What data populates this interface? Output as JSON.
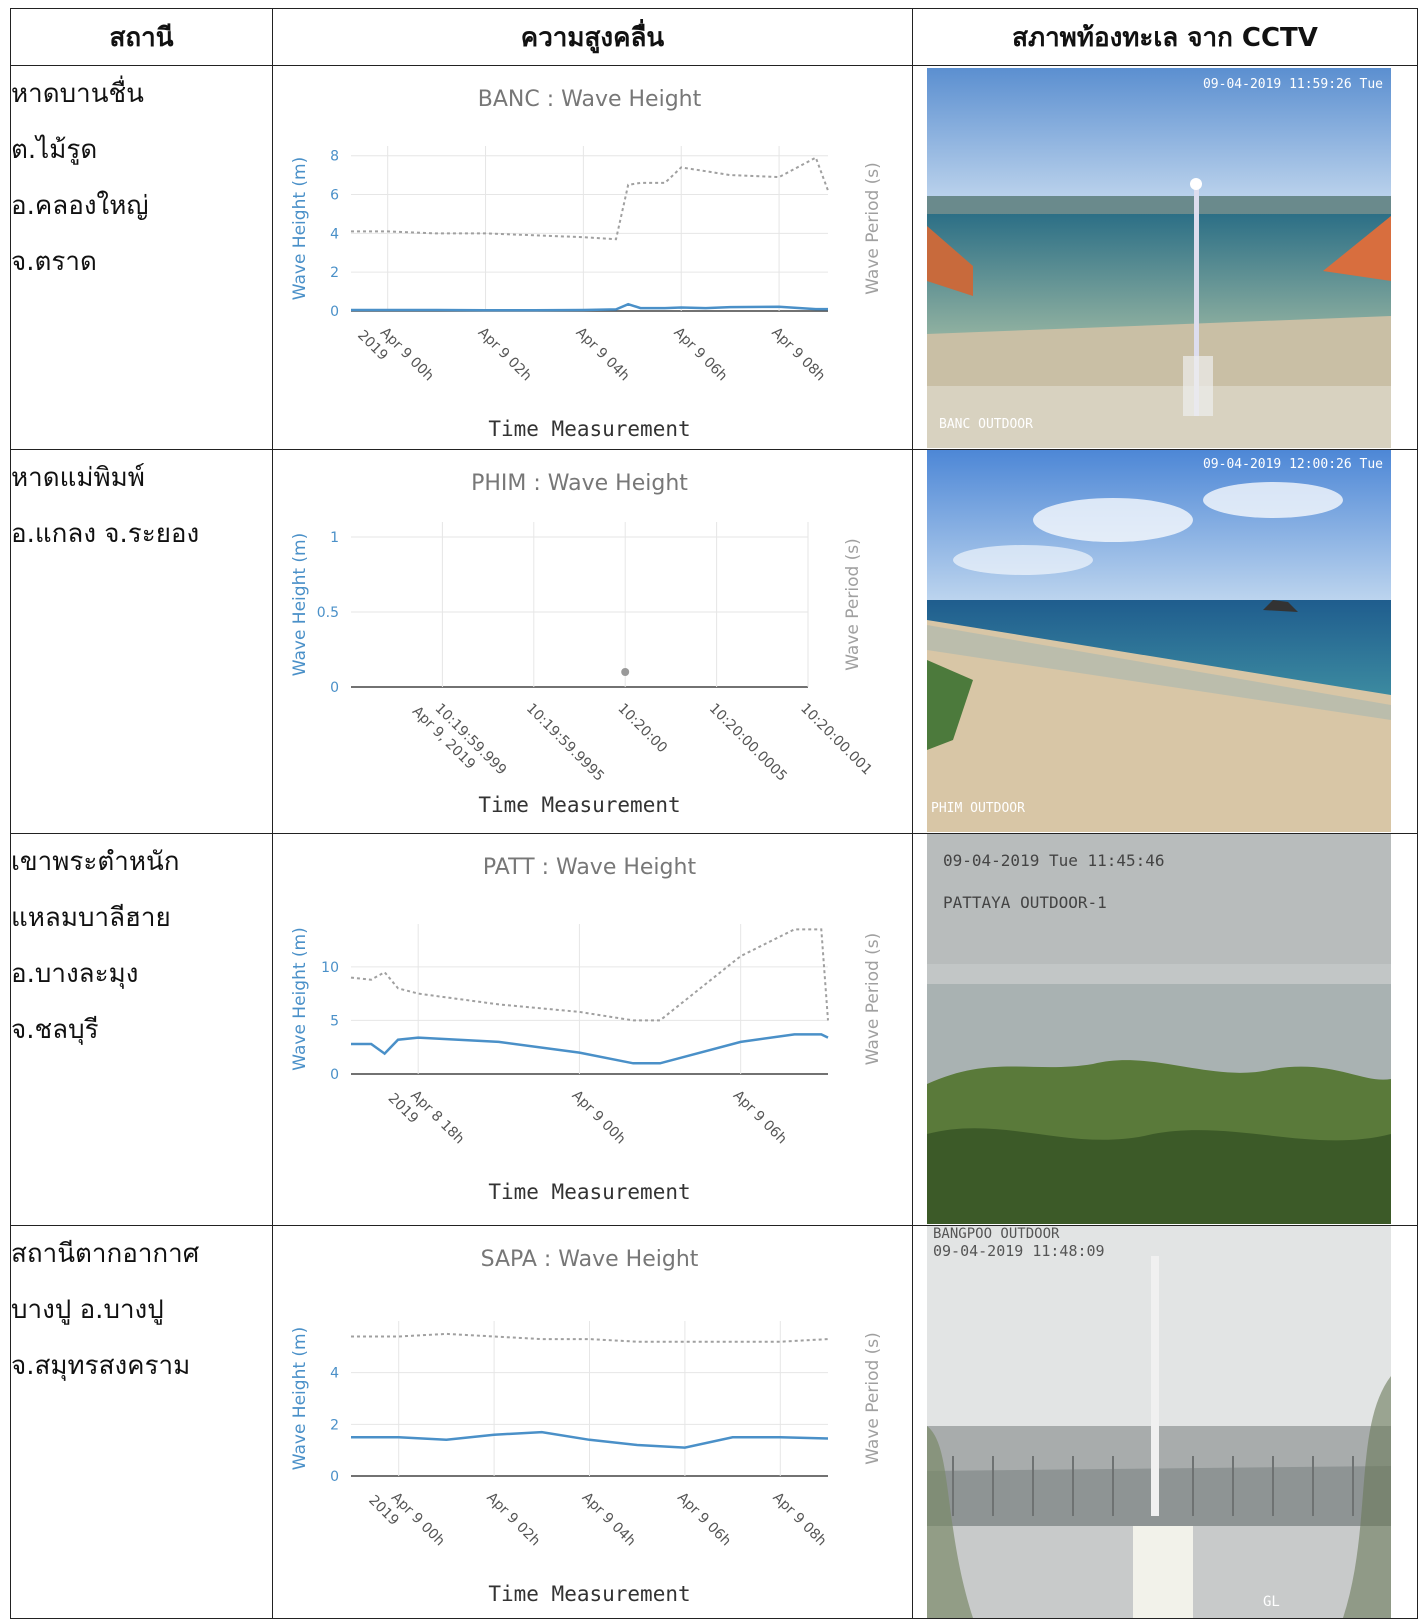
{
  "headers": {
    "station": "สถานี",
    "wave": "ความสูงคลื่น",
    "cctv": "สภาพท้องทะเล จาก CCTV"
  },
  "rows": [
    {
      "station_lines": [
        "หาดบานชื่น",
        "ต.ไม้รูด",
        "อ.คลองใหญ่",
        "จ.ตราด"
      ],
      "cam_timestamp": "09-04-2019 11:59:26 Tue",
      "cam_label": "BANC OUTDOOR",
      "cam_label2": ""
    },
    {
      "station_lines": [
        "หาดแม่พิมพ์",
        "อ.แกลง จ.ระยอง"
      ],
      "cam_timestamp": "09-04-2019 12:00:26 Tue",
      "cam_label": "PHIM OUTDOOR",
      "cam_label2": ""
    },
    {
      "station_lines": [
        "เขาพระตำหนัก",
        "แหลมบาลีฮาย",
        "อ.บางละมุง",
        "จ.ชลบุรี"
      ],
      "cam_timestamp": "09-04-2019 Tue 11:45:46",
      "cam_label": "PATTAYA OUTDOOR-1",
      "cam_label2": ""
    },
    {
      "station_lines": [
        "สถานีตากอากาศ",
        "บางปู อ.บางปู",
        "จ.สมุทรสงคราม"
      ],
      "cam_timestamp": "09-04-2019 11:48:09",
      "cam_label": "BANGPOO OUTDOOR",
      "cam_label2": "GL"
    }
  ],
  "colors": {
    "height": "#4a90c8",
    "period": "#a0a0a0",
    "grid": "#e6e6e6",
    "axis": "#444444",
    "title": "#777777"
  },
  "chart_data": [
    {
      "type": "line",
      "title": "BANC : Wave Height",
      "xlabel": "Time Measurement",
      "ylabel": "Wave Height (m)",
      "y2label": "Wave Period (s)",
      "x_ticks": [
        "Apr 9 00h\n2019",
        "Apr 9 02h",
        "Apr 9 04h",
        "Apr 9 06h",
        "Apr 9 08h"
      ],
      "ylim": [
        0,
        8.5
      ],
      "y_ticks": [
        0,
        2,
        4,
        6,
        8
      ],
      "x": [
        "2019-04-08 23:15",
        "2019-04-09 00:00",
        "2019-04-09 01:00",
        "2019-04-09 02:00",
        "2019-04-09 03:00",
        "2019-04-09 04:00",
        "2019-04-09 04:40",
        "2019-04-09 04:55",
        "2019-04-09 05:10",
        "2019-04-09 05:40",
        "2019-04-09 06:00",
        "2019-04-09 06:30",
        "2019-04-09 07:00",
        "2019-04-09 08:00",
        "2019-04-09 08:45",
        "2019-04-09 09:00"
      ],
      "series": [
        {
          "name": "Wave Height (m)",
          "values": [
            0.05,
            0.05,
            0.05,
            0.04,
            0.04,
            0.05,
            0.08,
            0.35,
            0.15,
            0.15,
            0.18,
            0.15,
            0.2,
            0.22,
            0.1,
            0.1
          ]
        },
        {
          "name": "Wave Period (s)",
          "values": [
            4.1,
            4.1,
            4.0,
            4.0,
            3.9,
            3.8,
            3.7,
            6.5,
            6.6,
            6.6,
            7.4,
            7.2,
            7.0,
            6.9,
            7.9,
            6.2
          ]
        }
      ]
    },
    {
      "type": "scatter",
      "title": "PHIM : Wave Height",
      "xlabel": "Time Measurement",
      "ylabel": "Wave Height (m)",
      "y2label": "Wave Period (s)",
      "x_ticks": [
        "10:19:59.999\nApr 9, 2019",
        "10:19:59.9995",
        "10:20:00",
        "10:20:00.0005",
        "10:20:00.001"
      ],
      "ylim": [
        0,
        1.1
      ],
      "y_ticks": [
        0,
        0.5,
        1
      ],
      "x": [
        "2019-04-09 10:20:00.000"
      ],
      "series": [
        {
          "name": "Wave Height (m)",
          "values": [
            0.1
          ]
        }
      ]
    },
    {
      "type": "line",
      "title": "PATT : Wave Height",
      "xlabel": "Time Measurement",
      "ylabel": "Wave Height (m)",
      "y2label": "Wave Period (s)",
      "x_ticks": [
        "Apr 8 18h\n2019",
        "Apr 9 00h",
        "Apr 9 06h"
      ],
      "ylim": [
        0,
        14
      ],
      "y_ticks": [
        0,
        5,
        10
      ],
      "x": [
        "2019-04-08 15:30",
        "2019-04-08 16:15",
        "2019-04-08 16:45",
        "2019-04-08 17:15",
        "2019-04-08 18:00",
        "2019-04-08 21:00",
        "2019-04-09 00:00",
        "2019-04-09 02:00",
        "2019-04-09 03:00",
        "2019-04-09 06:00",
        "2019-04-09 08:00",
        "2019-04-09 09:00",
        "2019-04-09 09:15"
      ],
      "series": [
        {
          "name": "Wave Height (m)",
          "values": [
            2.8,
            2.8,
            1.9,
            3.2,
            3.4,
            3.0,
            2.0,
            1.0,
            1.0,
            3.0,
            3.7,
            3.7,
            3.4
          ]
        },
        {
          "name": "Wave Period (s)",
          "values": [
            9.0,
            8.8,
            9.5,
            8.0,
            7.5,
            6.5,
            5.8,
            5.0,
            5.0,
            11.0,
            13.5,
            13.5,
            5.0
          ]
        }
      ]
    },
    {
      "type": "line",
      "title": "SAPA : Wave Height",
      "xlabel": "Time Measurement",
      "ylabel": "Wave Height (m)",
      "y2label": "Wave Period (s)",
      "x_ticks": [
        "Apr 9 00h\n2019",
        "Apr 9 02h",
        "Apr 9 04h",
        "Apr 9 06h",
        "Apr 9 08h"
      ],
      "ylim": [
        0,
        6
      ],
      "y_ticks": [
        0,
        2,
        4
      ],
      "x": [
        "2019-04-08 23:00",
        "2019-04-09 00:00",
        "2019-04-09 01:00",
        "2019-04-09 02:00",
        "2019-04-09 03:00",
        "2019-04-09 04:00",
        "2019-04-09 05:00",
        "2019-04-09 06:00",
        "2019-04-09 07:00",
        "2019-04-09 08:00",
        "2019-04-09 09:00"
      ],
      "series": [
        {
          "name": "Wave Height (m)",
          "values": [
            1.5,
            1.5,
            1.4,
            1.6,
            1.7,
            1.4,
            1.2,
            1.1,
            1.5,
            1.5,
            1.45
          ]
        },
        {
          "name": "Wave Period (s)",
          "values": [
            5.4,
            5.4,
            5.5,
            5.4,
            5.3,
            5.3,
            5.2,
            5.2,
            5.2,
            5.2,
            5.3
          ]
        }
      ]
    }
  ]
}
